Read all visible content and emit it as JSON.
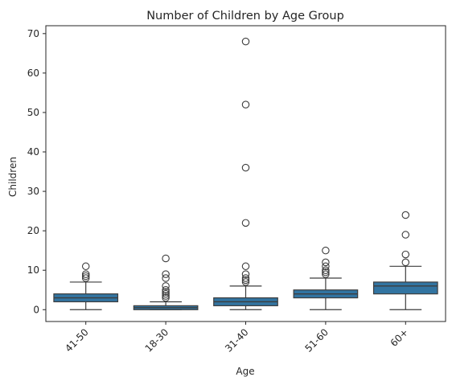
{
  "chart_data": {
    "type": "box",
    "title": "Number of Children by Age Group",
    "xlabel": "Age",
    "ylabel": "Children",
    "ylim": [
      -3,
      72
    ],
    "yticks": [
      0,
      10,
      20,
      30,
      40,
      50,
      60,
      70
    ],
    "categories": [
      "41-50",
      "18-30",
      "31-40",
      "51-60",
      "60+"
    ],
    "boxes": [
      {
        "category": "41-50",
        "whisker_low": 0,
        "q1": 2,
        "median": 3,
        "q3": 4,
        "whisker_high": 7,
        "outliers": [
          8,
          8.5,
          9,
          11
        ]
      },
      {
        "category": "18-30",
        "whisker_low": 0,
        "q1": 0,
        "median": 0.5,
        "q3": 1,
        "whisker_high": 2,
        "outliers": [
          3,
          3.5,
          4,
          4.5,
          5,
          6,
          8,
          9,
          13
        ]
      },
      {
        "category": "31-40",
        "whisker_low": 0,
        "q1": 1,
        "median": 2,
        "q3": 3,
        "whisker_high": 6,
        "outliers": [
          7,
          7.5,
          8,
          9,
          11,
          22,
          36,
          52,
          68
        ]
      },
      {
        "category": "51-60",
        "whisker_low": 0,
        "q1": 3,
        "median": 4,
        "q3": 5,
        "whisker_high": 8,
        "outliers": [
          9,
          9.5,
          10,
          11,
          12,
          15
        ]
      },
      {
        "category": "60+",
        "whisker_low": 0,
        "q1": 4,
        "median": 6,
        "q3": 7,
        "whisker_high": 11,
        "outliers": [
          12,
          14,
          19,
          24
        ]
      }
    ],
    "box_color": "#3274a1",
    "line_color": "#3d3d3d",
    "grid": false,
    "legend": "none",
    "xtick_rotation": 45
  }
}
